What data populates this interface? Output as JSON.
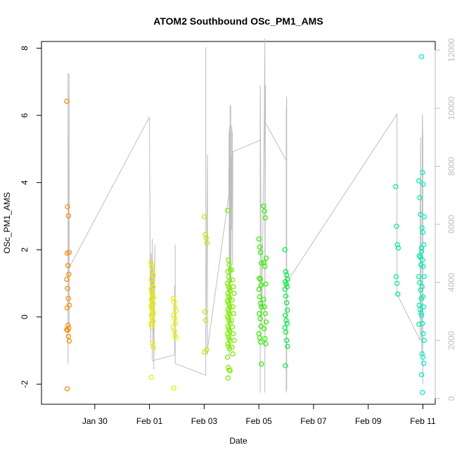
{
  "chart_data": {
    "type": "scatter",
    "title": "ATOM2 Southbound OSc_PM1_AMS",
    "xlabel": "Date",
    "ylabel": "OSc_PM1_AMS",
    "x_unit": "days from Jan 28",
    "xlim": [
      0.05,
      14.45
    ],
    "ylim": [
      -2.6,
      8.2
    ],
    "y2lim": [
      -200,
      12300
    ],
    "x_ticks": [
      {
        "value": 2,
        "label": "Jan 30"
      },
      {
        "value": 4,
        "label": "Feb 01"
      },
      {
        "value": 6,
        "label": "Feb 03"
      },
      {
        "value": 8,
        "label": "Feb 05"
      },
      {
        "value": 10,
        "label": "Feb 07"
      },
      {
        "value": 12,
        "label": "Feb 09"
      },
      {
        "value": 14,
        "label": "Feb 11"
      }
    ],
    "y_ticks": [
      {
        "value": -2,
        "label": "-2"
      },
      {
        "value": 0,
        "label": "0"
      },
      {
        "value": 2,
        "label": "2"
      },
      {
        "value": 4,
        "label": "4"
      },
      {
        "value": 6,
        "label": "6"
      },
      {
        "value": 8,
        "label": "8"
      }
    ],
    "y2_ticks": [
      {
        "value": 0,
        "label": "0"
      },
      {
        "value": 2000,
        "label": "2000"
      },
      {
        "value": 4000,
        "label": "4000"
      },
      {
        "value": 6000,
        "label": "6000"
      },
      {
        "value": 8000,
        "label": "8000"
      },
      {
        "value": 10000,
        "label": "10000"
      },
      {
        "value": 12000,
        "label": "12000"
      }
    ],
    "line_color": "#bebebe",
    "groups": [
      {
        "x": 1.02,
        "color": "#ff8c00",
        "values": [
          6.42,
          3.28,
          3.01,
          1.92,
          1.9,
          1.53,
          1.27,
          1.12,
          0.85,
          0.55,
          0.35,
          0.27,
          -0.25,
          -0.33,
          -0.38,
          -0.4,
          -0.58,
          -0.72,
          -2.14
        ]
      },
      {
        "x": 4.1,
        "color": "#e8f000",
        "values": [
          1.62,
          1.5,
          1.38,
          1.25,
          1.12,
          1.0,
          0.9,
          0.82,
          0.72,
          0.65,
          0.58,
          0.52,
          0.45,
          0.4,
          0.32,
          0.25,
          0.18,
          0.1,
          0.05,
          -0.05,
          -0.12,
          -0.2,
          -0.28,
          -0.78,
          -0.92,
          -1.8
        ]
      },
      {
        "x": 4.92,
        "color": "#e8f000",
        "values": [
          0.55,
          0.45,
          0.3,
          0.18,
          0.05,
          -0.05,
          -0.2,
          -0.3,
          -0.42,
          -0.55,
          -0.62,
          -2.12
        ]
      },
      {
        "x": 6.06,
        "color": "#b4f000",
        "values": [
          2.98,
          2.45,
          2.35,
          2.2,
          0.15,
          -0.1,
          -0.98,
          -1.05
        ]
      },
      {
        "x": 6.9,
        "color": "#7cf000",
        "values": [
          3.17,
          1.7,
          1.55,
          1.4,
          1.35,
          1.2,
          1.08,
          1.0,
          0.92,
          0.85,
          0.78,
          0.7,
          0.62,
          0.55,
          0.48,
          0.42,
          0.35,
          0.28,
          0.22,
          0.15,
          0.08,
          0.02,
          -0.05,
          -0.12,
          -0.2,
          -0.28,
          -0.35,
          -0.42,
          -0.5,
          -0.58,
          -0.65,
          -0.72,
          -0.8,
          -0.88,
          -0.95,
          -1.2,
          -1.5,
          -1.58,
          -1.6,
          -1.82
        ]
      },
      {
        "x": 7.05,
        "color": "#7cf000",
        "values": [
          1.4,
          1.1,
          0.9,
          0.7,
          0.5,
          0.3,
          0.1,
          -0.1,
          -0.3,
          -0.5,
          -0.7,
          -0.9,
          -1.1
        ]
      },
      {
        "x": 8.05,
        "color": "#30f000",
        "values": [
          2.32,
          2.08,
          1.92,
          1.6,
          1.15,
          1.12,
          0.95,
          0.82,
          0.6,
          0.4,
          0.3,
          0.1,
          -0.05,
          -0.28,
          -0.5,
          -0.62,
          -0.75,
          -1.4
        ]
      },
      {
        "x": 8.22,
        "color": "#30f000",
        "values": [
          3.3,
          3.15,
          2.95,
          1.75,
          1.62,
          1.5,
          0.98,
          0.52,
          0.3,
          0.1,
          -0.15,
          -0.35,
          -0.65,
          -0.8
        ]
      },
      {
        "x": 9.0,
        "color": "#00f040",
        "values": [
          2.0,
          1.35,
          1.25,
          1.12,
          1.05,
          0.98,
          0.9,
          0.82,
          0.62,
          0.42,
          0.2,
          0.05,
          -0.1,
          -0.2,
          -0.32,
          -0.45,
          -0.7,
          -0.88,
          -1.45
        ]
      },
      {
        "x": 13.05,
        "color": "#00f0a0",
        "values": [
          3.88,
          2.7,
          2.15,
          2.05,
          1.2,
          1.0,
          0.68
        ]
      },
      {
        "x": 13.9,
        "color": "#00f0a0",
        "values": [
          4.05,
          3.55,
          3.05,
          2.05,
          1.82,
          1.78,
          1.55,
          1.2,
          1.02,
          0.8,
          0.55,
          0.35,
          0.22,
          0.12,
          -0.22
        ]
      },
      {
        "x": 14.0,
        "color": "#00f0c8",
        "values": [
          7.75,
          4.3,
          3.95,
          2.98,
          2.65,
          2.52,
          2.15,
          1.95,
          1.7,
          1.5,
          1.2,
          0.9,
          0.6,
          0.3,
          0.05,
          -0.2,
          -0.5,
          -0.7,
          -1.1,
          -1.2,
          -1.38,
          -1.72,
          -2.25
        ]
      }
    ],
    "line_series": {
      "name": "",
      "axis": "right",
      "x": [
        1.02,
        1.02,
        1.06,
        1.06,
        1.06,
        4.0,
        4.02,
        4.04,
        4.06,
        4.08,
        4.1,
        4.12,
        4.14,
        4.16,
        4.18,
        4.2,
        4.1,
        4.92,
        4.92,
        4.94,
        4.94,
        4.94,
        6.06,
        6.06,
        6.06,
        6.06,
        6.06,
        6.12,
        6.12,
        6.12,
        6.12,
        6.9,
        6.91,
        6.92,
        6.93,
        6.94,
        6.95,
        6.96,
        6.97,
        6.98,
        6.99,
        7.0,
        7.01,
        7.02,
        7.03,
        7.04,
        7.05,
        8.05,
        8.05,
        8.05,
        8.1,
        8.2,
        8.22,
        8.22,
        8.24,
        8.24,
        9.0,
        9.0,
        9.0,
        9.02,
        9.02,
        9.02,
        13.05,
        13.05,
        13.05,
        13.05,
        13.9,
        13.9,
        13.92,
        13.92,
        13.94,
        13.96,
        13.98,
        14.0,
        14.0,
        14.0
      ],
      "y": [
        11200,
        1200,
        11200,
        2500,
        4500,
        9700,
        5200,
        1800,
        5000,
        3000,
        5500,
        2200,
        4500,
        1000,
        3500,
        5300,
        1300,
        1500,
        3900,
        2000,
        5300,
        1200,
        800,
        8900,
        1000,
        12100,
        1400,
        8400,
        1500,
        7600,
        1700,
        7000,
        9200,
        1500,
        9400,
        3000,
        10100,
        2000,
        10100,
        4000,
        8300,
        5800,
        9400,
        6500,
        9200,
        4600,
        8500,
        8900,
        200,
        10800,
        2400,
        9800,
        12400,
        200,
        10800,
        9500,
        8200,
        200,
        9900,
        10400,
        300,
        4000,
        9800,
        9800,
        9500,
        3600,
        2000,
        6500,
        9000,
        3500,
        2500,
        1500,
        9800,
        9000,
        500,
        2400
      ]
    }
  }
}
